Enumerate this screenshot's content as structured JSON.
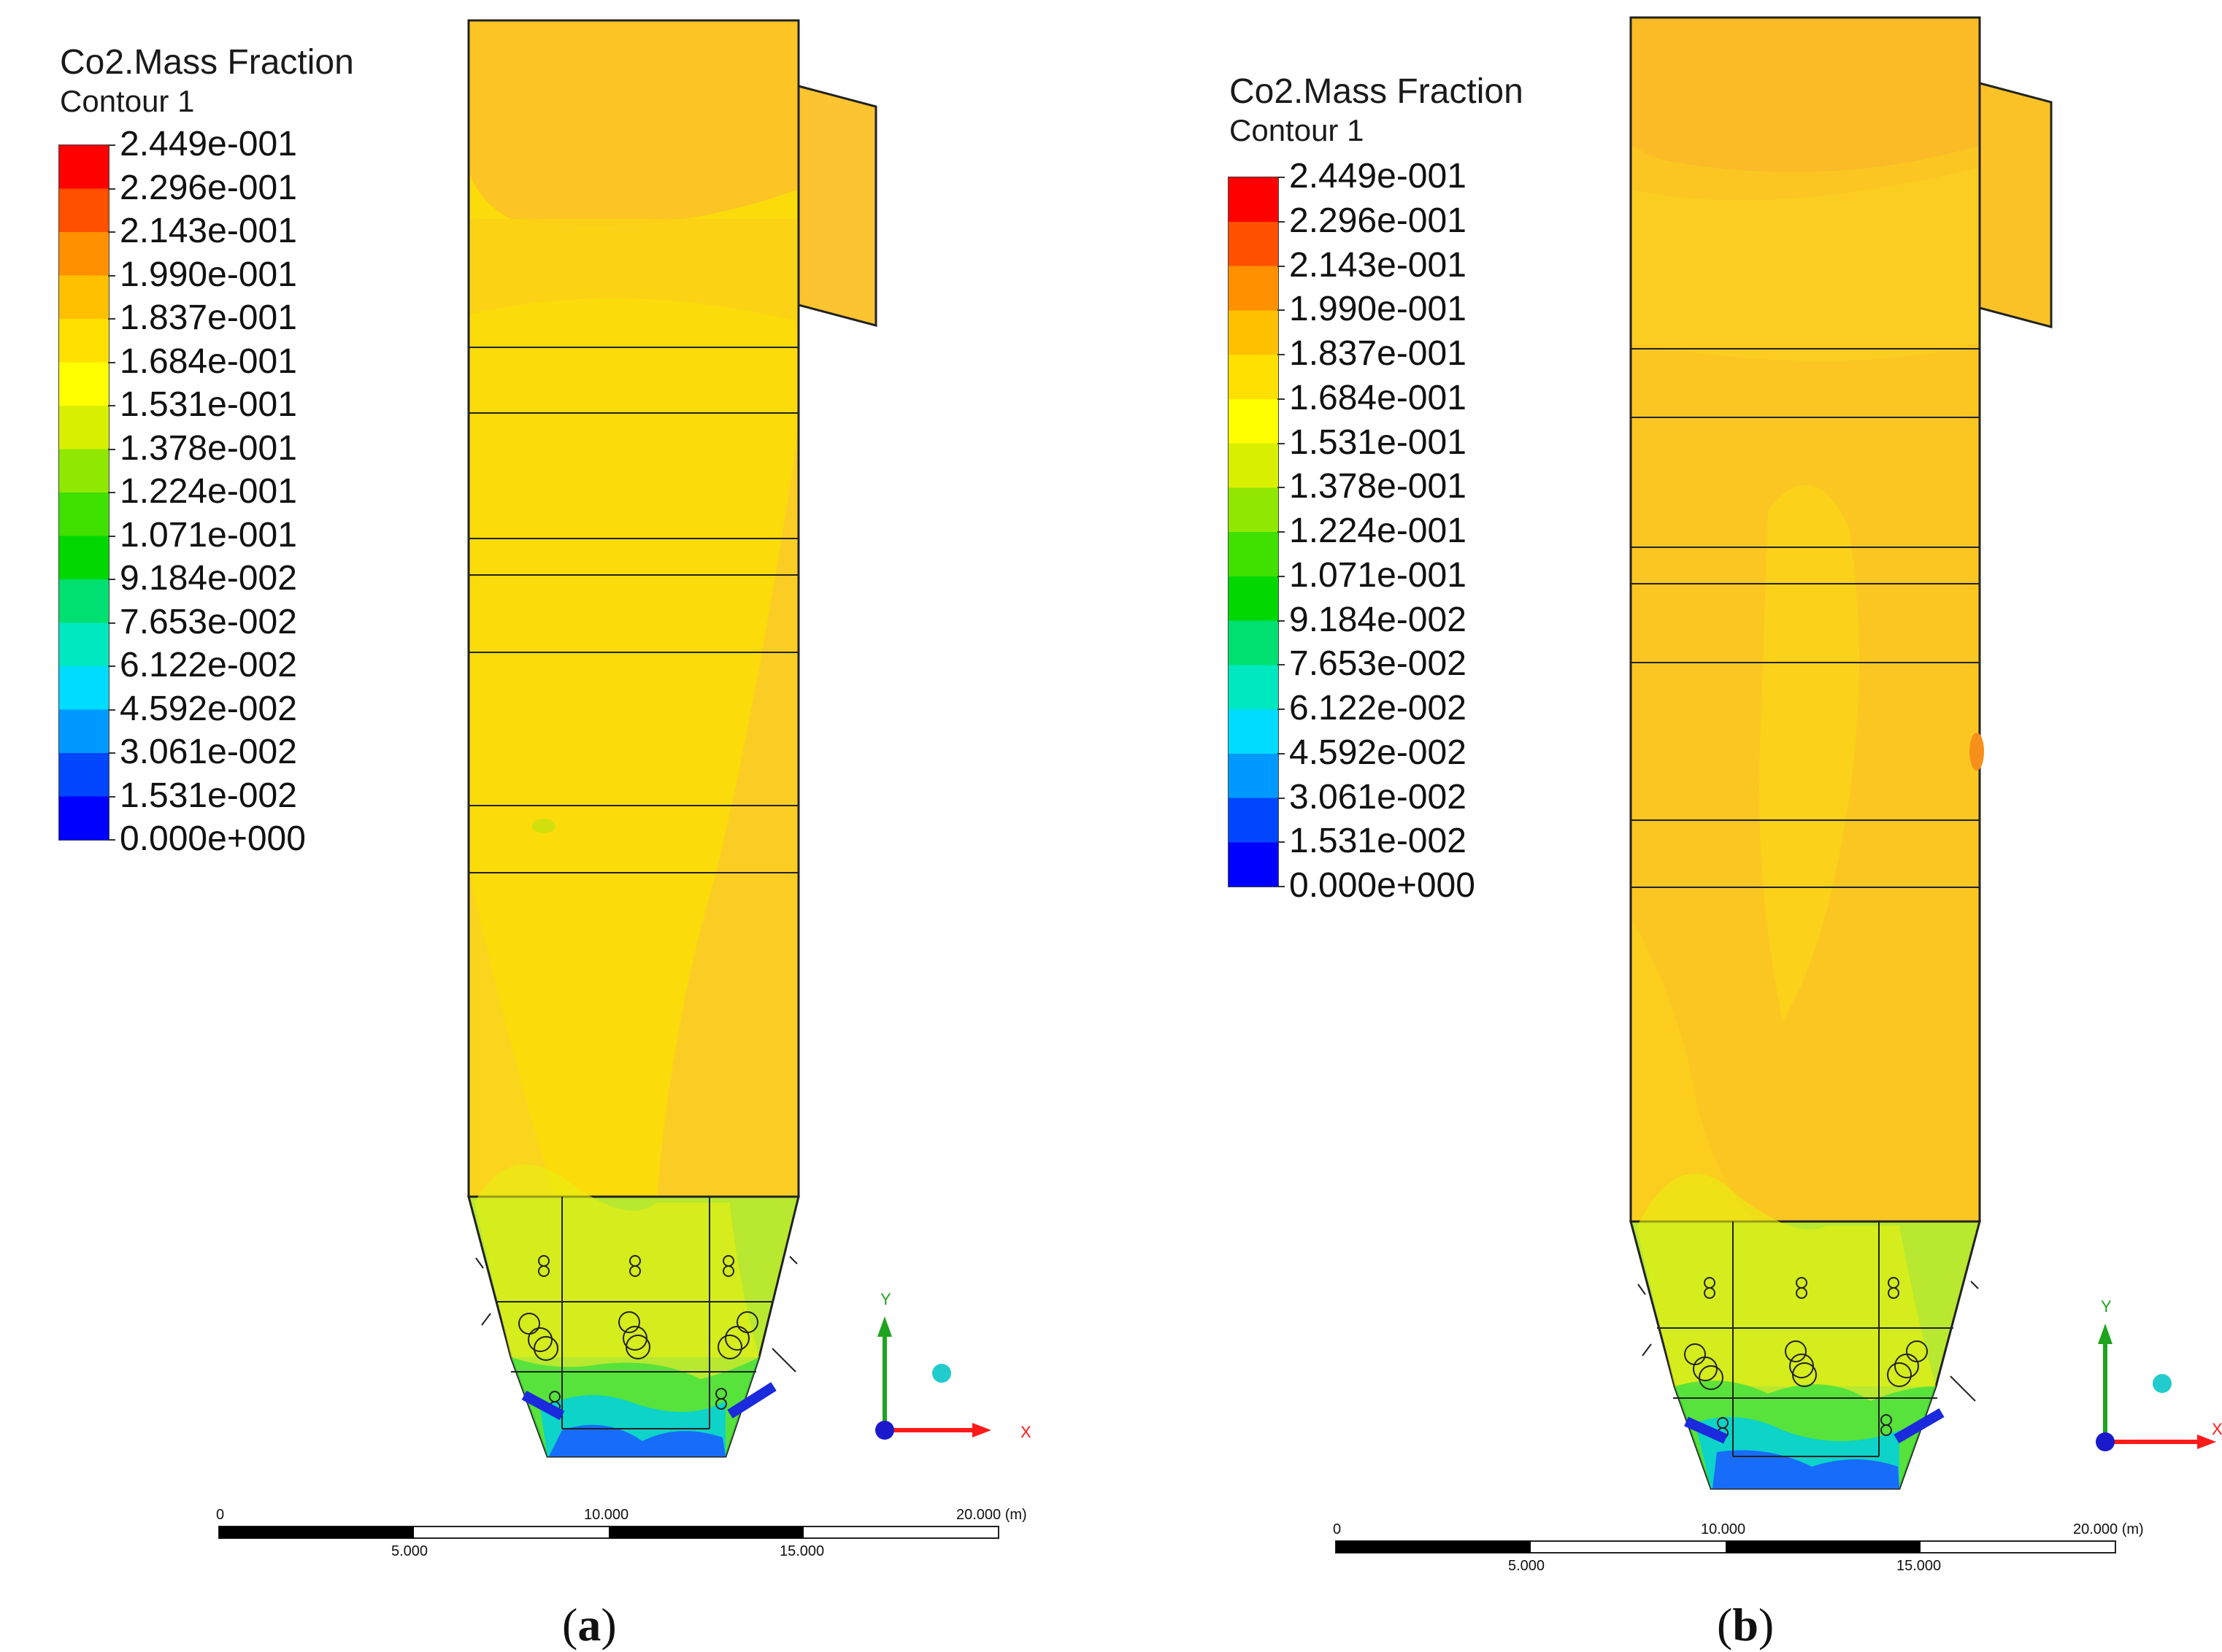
{
  "colors": {
    "scale": [
      "#0000ff",
      "#0046ff",
      "#0099ff",
      "#00dcff",
      "#00e8c0",
      "#00e070",
      "#00d800",
      "#40e000",
      "#90e800",
      "#d8f000",
      "#ffff00",
      "#ffe000",
      "#ffc000",
      "#ff9000",
      "#ff5000",
      "#ff0000"
    ],
    "furnace_fill_a": "#fbdc0a",
    "furnace_fill_b": "#fbc622",
    "axis_y": "#1fa31f",
    "axis_x": "#ff1a1a",
    "origin": "#1a1acc",
    "sphere": "#22cccc"
  },
  "panels": [
    {
      "id": "a",
      "legend_title": "Co2.Mass Fraction",
      "legend_subtitle": "Contour 1",
      "legend_values": [
        "2.449e-001",
        "2.296e-001",
        "2.143e-001",
        "1.990e-001",
        "1.837e-001",
        "1.684e-001",
        "1.531e-001",
        "1.378e-001",
        "1.224e-001",
        "1.071e-001",
        "9.184e-002",
        "7.653e-002",
        "6.122e-002",
        "4.592e-002",
        "3.061e-002",
        "1.531e-002",
        "0.000e+000"
      ],
      "scale_top_labels": [
        "0",
        "10.000",
        "20.000 (m)"
      ],
      "scale_bottom_labels": [
        "5.000",
        "15.000"
      ],
      "axis_y_label": "Y",
      "axis_x_label": "X",
      "caption_open": "(",
      "caption_letter": "a",
      "caption_close": ")"
    },
    {
      "id": "b",
      "legend_title": "Co2.Mass Fraction",
      "legend_subtitle": "Contour 1",
      "legend_values": [
        "2.449e-001",
        "2.296e-001",
        "2.143e-001",
        "1.990e-001",
        "1.837e-001",
        "1.684e-001",
        "1.531e-001",
        "1.378e-001",
        "1.224e-001",
        "1.071e-001",
        "9.184e-002",
        "7.653e-002",
        "6.122e-002",
        "4.592e-002",
        "3.061e-002",
        "1.531e-002",
        "0.000e+000"
      ],
      "scale_top_labels": [
        "0",
        "10.000",
        "20.000 (m)"
      ],
      "scale_bottom_labels": [
        "5.000",
        "15.000"
      ],
      "axis_y_label": "Y",
      "axis_x_label": "X",
      "caption_open": "(",
      "caption_letter": "b",
      "caption_close": ")"
    }
  ]
}
